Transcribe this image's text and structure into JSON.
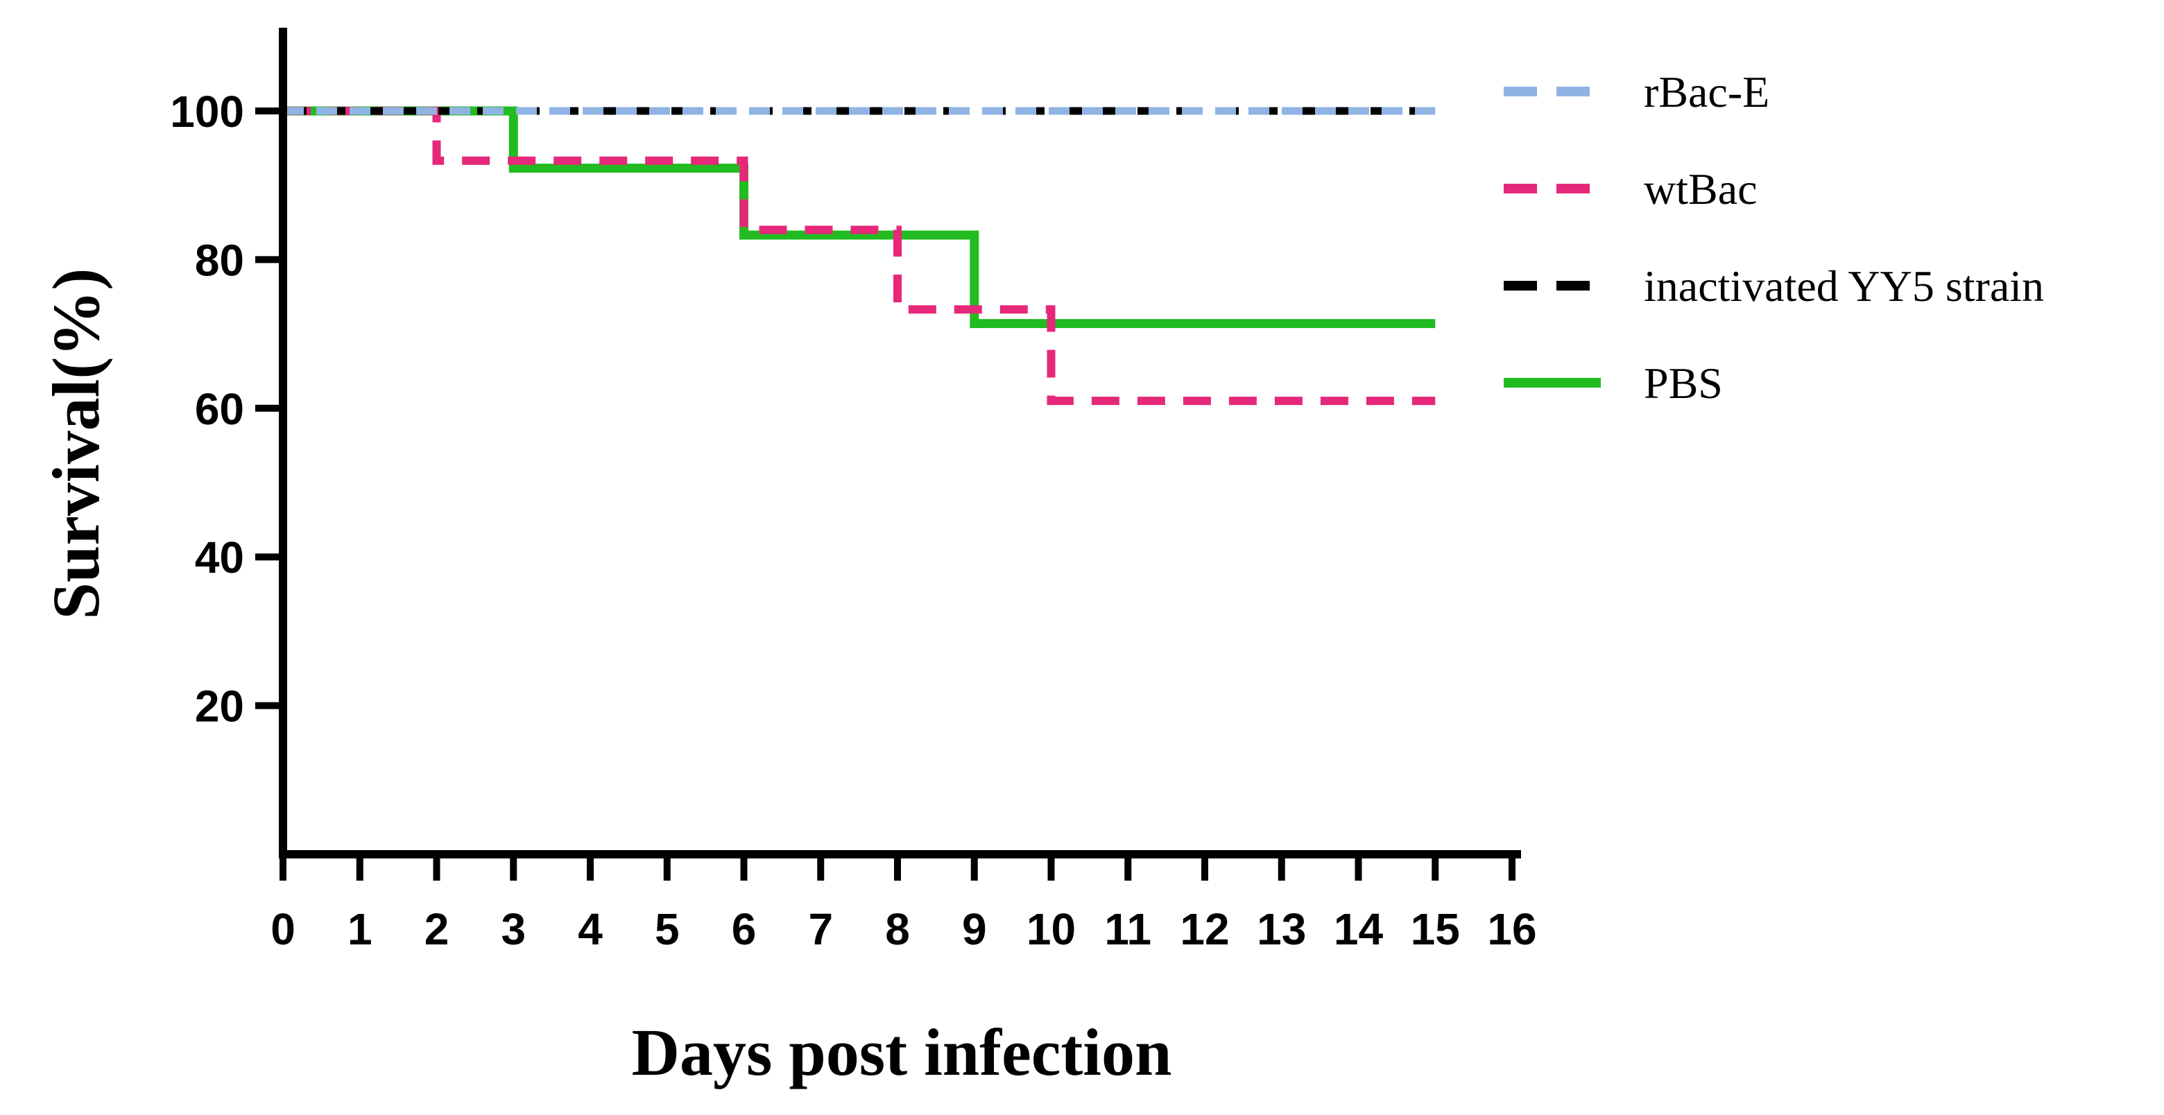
{
  "chart_data": {
    "type": "line",
    "subtype": "kaplan-meier-step",
    "title": "",
    "xlabel": "Days post infection",
    "ylabel": "Survival(%)",
    "xlim": [
      0,
      16
    ],
    "ylim": [
      0,
      110
    ],
    "x_ticks": [
      0,
      1,
      2,
      3,
      4,
      5,
      6,
      7,
      8,
      9,
      10,
      11,
      12,
      13,
      14,
      15,
      16
    ],
    "y_ticks": [
      20,
      40,
      60,
      80,
      100
    ],
    "legend_position": "right",
    "series": [
      {
        "name": "rBac-E",
        "color": "#8fb4e3",
        "style": "dashed",
        "points": [
          [
            0,
            100
          ],
          [
            15,
            100
          ]
        ]
      },
      {
        "name": "wtBac",
        "color": "#e5287a",
        "style": "dashed",
        "points": [
          [
            0,
            100
          ],
          [
            2,
            100
          ],
          [
            2,
            93.3
          ],
          [
            6,
            93.3
          ],
          [
            6,
            84
          ],
          [
            8,
            84
          ],
          [
            8,
            73.3
          ],
          [
            10,
            73.3
          ],
          [
            10,
            61
          ],
          [
            15,
            61
          ]
        ]
      },
      {
        "name": "inactivated YY5 strain",
        "color": "#000000",
        "style": "dashed",
        "points": [
          [
            0,
            100
          ],
          [
            15,
            100
          ]
        ]
      },
      {
        "name": "PBS",
        "color": "#22bb22",
        "style": "solid",
        "points": [
          [
            0,
            100
          ],
          [
            3,
            100
          ],
          [
            3,
            92.3
          ],
          [
            6,
            92.3
          ],
          [
            6,
            83.3
          ],
          [
            9,
            83.3
          ],
          [
            9,
            71.4
          ],
          [
            15,
            71.4
          ]
        ]
      }
    ]
  }
}
